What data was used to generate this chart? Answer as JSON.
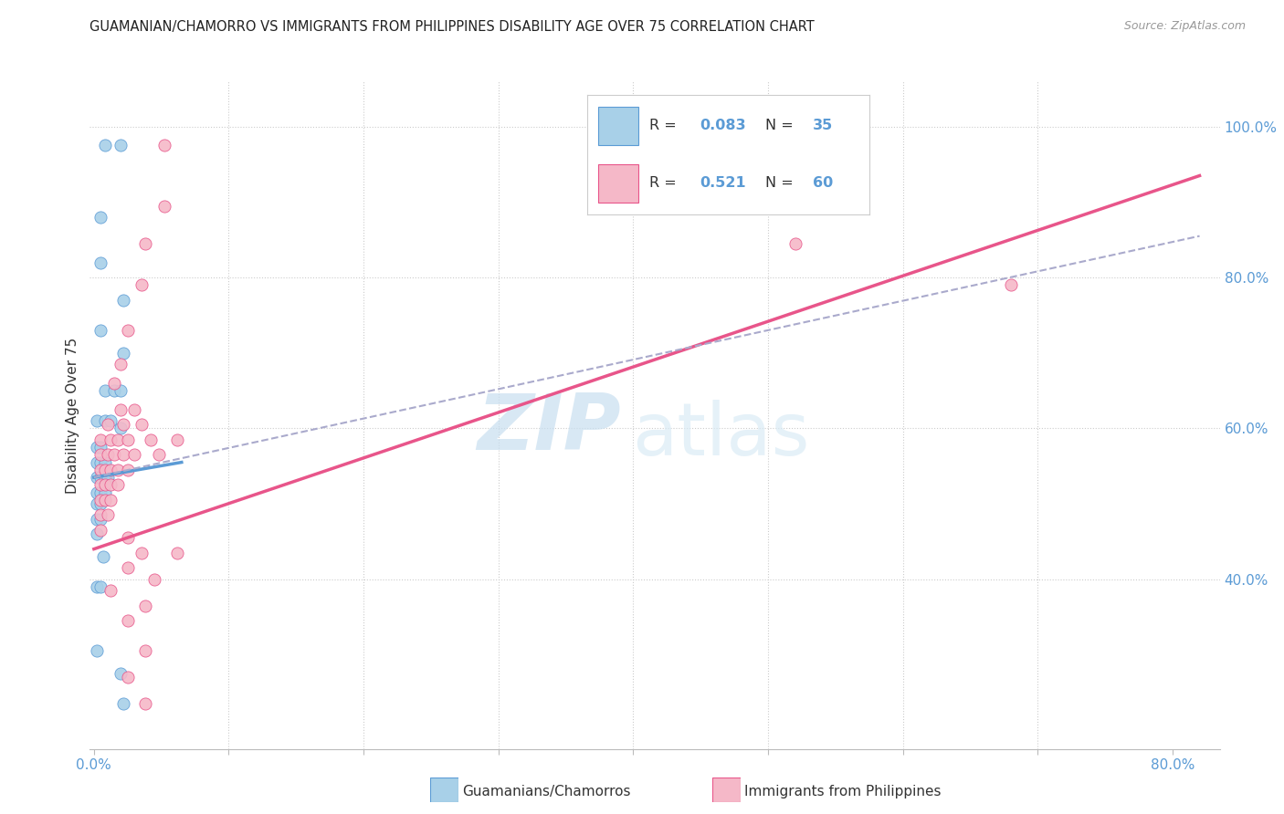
{
  "title": "GUAMANIAN/CHAMORRO VS IMMIGRANTS FROM PHILIPPINES DISABILITY AGE OVER 75 CORRELATION CHART",
  "source": "Source: ZipAtlas.com",
  "ylabel": "Disability Age Over 75",
  "right_yticks": [
    "100.0%",
    "80.0%",
    "60.0%",
    "40.0%"
  ],
  "right_ytick_vals": [
    1.0,
    0.8,
    0.6,
    0.4
  ],
  "xmin": -0.003,
  "xmax": 0.835,
  "ymin": 0.175,
  "ymax": 1.06,
  "watermark_zip": "ZIP",
  "watermark_atlas": "atlas",
  "blue_color": "#A8D0E8",
  "pink_color": "#F5B8C8",
  "blue_line_color": "#5B9BD5",
  "pink_line_color": "#E8558A",
  "dashed_line_color": "#AAAACC",
  "blue_scatter": [
    [
      0.008,
      0.975
    ],
    [
      0.02,
      0.975
    ],
    [
      0.005,
      0.88
    ],
    [
      0.005,
      0.82
    ],
    [
      0.022,
      0.77
    ],
    [
      0.005,
      0.73
    ],
    [
      0.022,
      0.7
    ],
    [
      0.008,
      0.65
    ],
    [
      0.015,
      0.65
    ],
    [
      0.02,
      0.65
    ],
    [
      0.002,
      0.61
    ],
    [
      0.008,
      0.61
    ],
    [
      0.012,
      0.61
    ],
    [
      0.02,
      0.6
    ],
    [
      0.002,
      0.575
    ],
    [
      0.005,
      0.575
    ],
    [
      0.002,
      0.555
    ],
    [
      0.005,
      0.555
    ],
    [
      0.008,
      0.555
    ],
    [
      0.002,
      0.535
    ],
    [
      0.005,
      0.535
    ],
    [
      0.008,
      0.535
    ],
    [
      0.01,
      0.535
    ],
    [
      0.002,
      0.515
    ],
    [
      0.005,
      0.515
    ],
    [
      0.008,
      0.515
    ],
    [
      0.002,
      0.5
    ],
    [
      0.005,
      0.5
    ],
    [
      0.002,
      0.48
    ],
    [
      0.005,
      0.48
    ],
    [
      0.002,
      0.46
    ],
    [
      0.007,
      0.43
    ],
    [
      0.002,
      0.39
    ],
    [
      0.005,
      0.39
    ],
    [
      0.002,
      0.305
    ],
    [
      0.02,
      0.275
    ],
    [
      0.022,
      0.235
    ]
  ],
  "pink_scatter": [
    [
      0.052,
      0.975
    ],
    [
      0.052,
      0.895
    ],
    [
      0.038,
      0.845
    ],
    [
      0.035,
      0.79
    ],
    [
      0.025,
      0.73
    ],
    [
      0.02,
      0.685
    ],
    [
      0.015,
      0.66
    ],
    [
      0.02,
      0.625
    ],
    [
      0.03,
      0.625
    ],
    [
      0.01,
      0.605
    ],
    [
      0.022,
      0.605
    ],
    [
      0.035,
      0.605
    ],
    [
      0.005,
      0.585
    ],
    [
      0.012,
      0.585
    ],
    [
      0.018,
      0.585
    ],
    [
      0.025,
      0.585
    ],
    [
      0.042,
      0.585
    ],
    [
      0.062,
      0.585
    ],
    [
      0.005,
      0.565
    ],
    [
      0.01,
      0.565
    ],
    [
      0.015,
      0.565
    ],
    [
      0.022,
      0.565
    ],
    [
      0.03,
      0.565
    ],
    [
      0.048,
      0.565
    ],
    [
      0.005,
      0.545
    ],
    [
      0.008,
      0.545
    ],
    [
      0.012,
      0.545
    ],
    [
      0.018,
      0.545
    ],
    [
      0.025,
      0.545
    ],
    [
      0.005,
      0.525
    ],
    [
      0.008,
      0.525
    ],
    [
      0.012,
      0.525
    ],
    [
      0.018,
      0.525
    ],
    [
      0.005,
      0.505
    ],
    [
      0.008,
      0.505
    ],
    [
      0.012,
      0.505
    ],
    [
      0.005,
      0.485
    ],
    [
      0.01,
      0.485
    ],
    [
      0.005,
      0.465
    ],
    [
      0.025,
      0.455
    ],
    [
      0.035,
      0.435
    ],
    [
      0.062,
      0.435
    ],
    [
      0.025,
      0.415
    ],
    [
      0.045,
      0.4
    ],
    [
      0.012,
      0.385
    ],
    [
      0.038,
      0.365
    ],
    [
      0.025,
      0.345
    ],
    [
      0.038,
      0.305
    ],
    [
      0.025,
      0.27
    ],
    [
      0.038,
      0.235
    ],
    [
      0.52,
      0.845
    ],
    [
      0.68,
      0.79
    ]
  ],
  "blue_trendline": [
    [
      0.0,
      0.535
    ],
    [
      0.065,
      0.555
    ]
  ],
  "pink_trendline": [
    [
      0.0,
      0.44
    ],
    [
      0.82,
      0.935
    ]
  ],
  "dashed_trendline": [
    [
      0.0,
      0.535
    ],
    [
      0.82,
      0.855
    ]
  ]
}
